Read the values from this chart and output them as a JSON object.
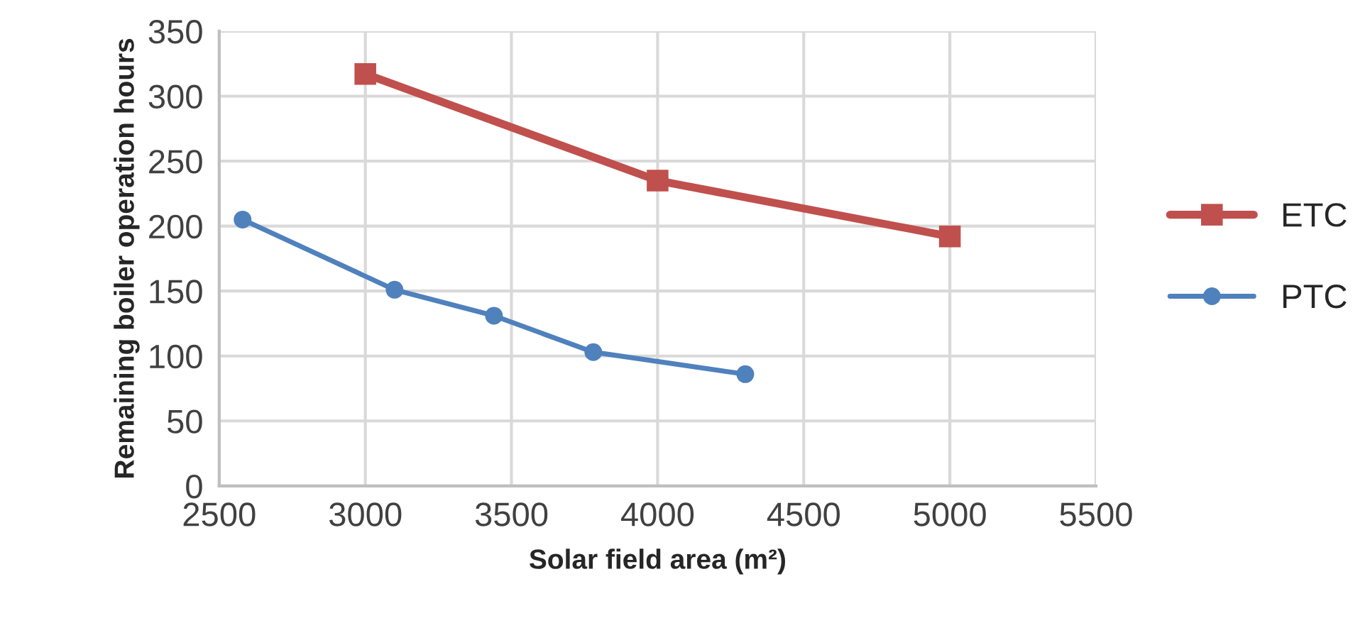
{
  "chart_data": {
    "type": "line",
    "xlabel": "Solar field area (m²)",
    "ylabel": "Remaining boiler operation hours",
    "series": [
      {
        "name": "ETC",
        "color": "#c0504d",
        "marker": "square",
        "x": [
          3000,
          4000,
          5000
        ],
        "values": [
          317,
          235,
          192
        ]
      },
      {
        "name": "PTC",
        "color": "#4f81bd",
        "marker": "circle",
        "x": [
          2580,
          3100,
          3440,
          3780,
          4300
        ],
        "values": [
          205,
          151,
          131,
          103,
          86
        ]
      }
    ],
    "xlim": [
      2500,
      5500
    ],
    "xticks": [
      2500,
      3000,
      3500,
      4000,
      4500,
      5000,
      5500
    ],
    "ylim": [
      0,
      350
    ],
    "yticks": [
      0,
      50,
      100,
      150,
      200,
      250,
      300,
      350
    ],
    "grid": true,
    "legend": "right"
  }
}
